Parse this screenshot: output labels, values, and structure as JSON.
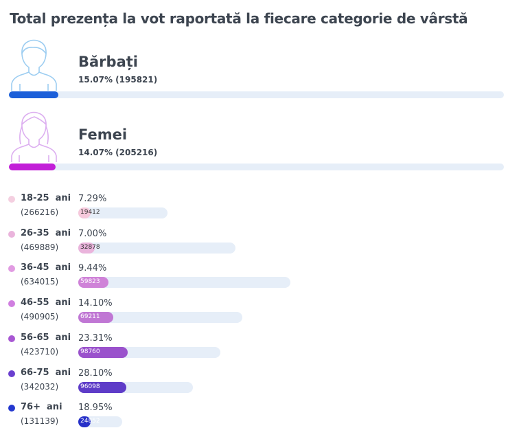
{
  "title": "Total prezența la vot raportată la fiecare categorie de vârstă",
  "gender": [
    {
      "label": "Bărbați",
      "stat": "15.07% (195821)",
      "pct": 15.07,
      "color": "#1b5fd9",
      "icon": "male-avatar-icon"
    },
    {
      "label": "Femei",
      "stat": "14.07% (205216)",
      "pct": 14.07,
      "color": "#c21fd8",
      "icon": "female-avatar-icon"
    }
  ],
  "chart_data": {
    "type": "bar",
    "title": "Total prezența la vot raportată la fiecare categorie de vârstă",
    "categories": [
      "18-25  ani",
      "26-35  ani",
      "36-45  ani",
      "46-55  ani",
      "56-65  ani",
      "66-75  ani",
      "76+  ani"
    ],
    "totals": [
      "(266216)",
      "(469889)",
      "(634015)",
      "(490905)",
      "(423710)",
      "(342032)",
      "(131139)"
    ],
    "total_values": [
      266216,
      469889,
      634015,
      490905,
      423710,
      342032,
      131139
    ],
    "percent_labels": [
      "7.29%",
      "7.00%",
      "9.44%",
      "14.10%",
      "23.31%",
      "28.10%",
      "18.95%"
    ],
    "percents": [
      7.29,
      7.0,
      9.44,
      14.1,
      23.31,
      28.1,
      18.95
    ],
    "count_labels": [
      "19412",
      "32878",
      "59823",
      "69211",
      "98760",
      "96098",
      "24852"
    ],
    "counts": [
      19412,
      32878,
      59823,
      69211,
      98760,
      96098,
      24852
    ],
    "colors": [
      "#f4cfe0",
      "#eab4dc",
      "#e19be2",
      "#d07fe0",
      "#a857d3",
      "#6a3fcf",
      "#2438cf"
    ],
    "fill_colors": [
      "#f6c9dc",
      "#eab4dc",
      "#cf82d8",
      "#c077d4",
      "#9a52cc",
      "#5e3cc8",
      "#2630c8"
    ],
    "count_text_colors": [
      "#333333",
      "#333333",
      "#ffffff",
      "#ffffff",
      "#ffffff",
      "#ffffff",
      "#ffffff"
    ]
  }
}
